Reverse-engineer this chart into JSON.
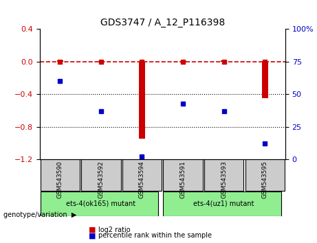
{
  "title": "GDS3747 / A_12_P116398",
  "samples": [
    "GSM543590",
    "GSM543592",
    "GSM543594",
    "GSM543591",
    "GSM543593",
    "GSM543595"
  ],
  "log2_ratio": [
    0.02,
    0.01,
    -0.95,
    0.01,
    0.02,
    -0.45
  ],
  "percentile_rank": [
    60,
    37,
    2,
    43,
    37,
    12
  ],
  "groups": [
    {
      "label": "ets-4(ok165) mutant",
      "samples": [
        0,
        1,
        2
      ],
      "color": "#90EE90"
    },
    {
      "label": "ets-4(uz1) mutant",
      "samples": [
        3,
        4,
        5
      ],
      "color": "#90EE90"
    }
  ],
  "left_yaxis": {
    "min": -1.2,
    "max": 0.4,
    "label": "log2 ratio",
    "color": "#cc0000"
  },
  "right_yaxis": {
    "min": 0,
    "max": 100,
    "label": "percentile",
    "color": "#0000cc"
  },
  "yticks_left": [
    0.4,
    0.0,
    -0.4,
    -0.8,
    -1.2
  ],
  "yticks_right": [
    100,
    75,
    50,
    25,
    0
  ],
  "hlines": [
    -0.4,
    -0.8
  ],
  "log2_color": "#cc0000",
  "percentile_color": "#0000cc",
  "bar_color": "#cc0000",
  "genotype_label": "genotype/variation",
  "legend_log2": "log2 ratio",
  "legend_percentile": "percentile rank within the sample",
  "sample_box_color": "#cccccc",
  "dashed_line_y": 0.0
}
